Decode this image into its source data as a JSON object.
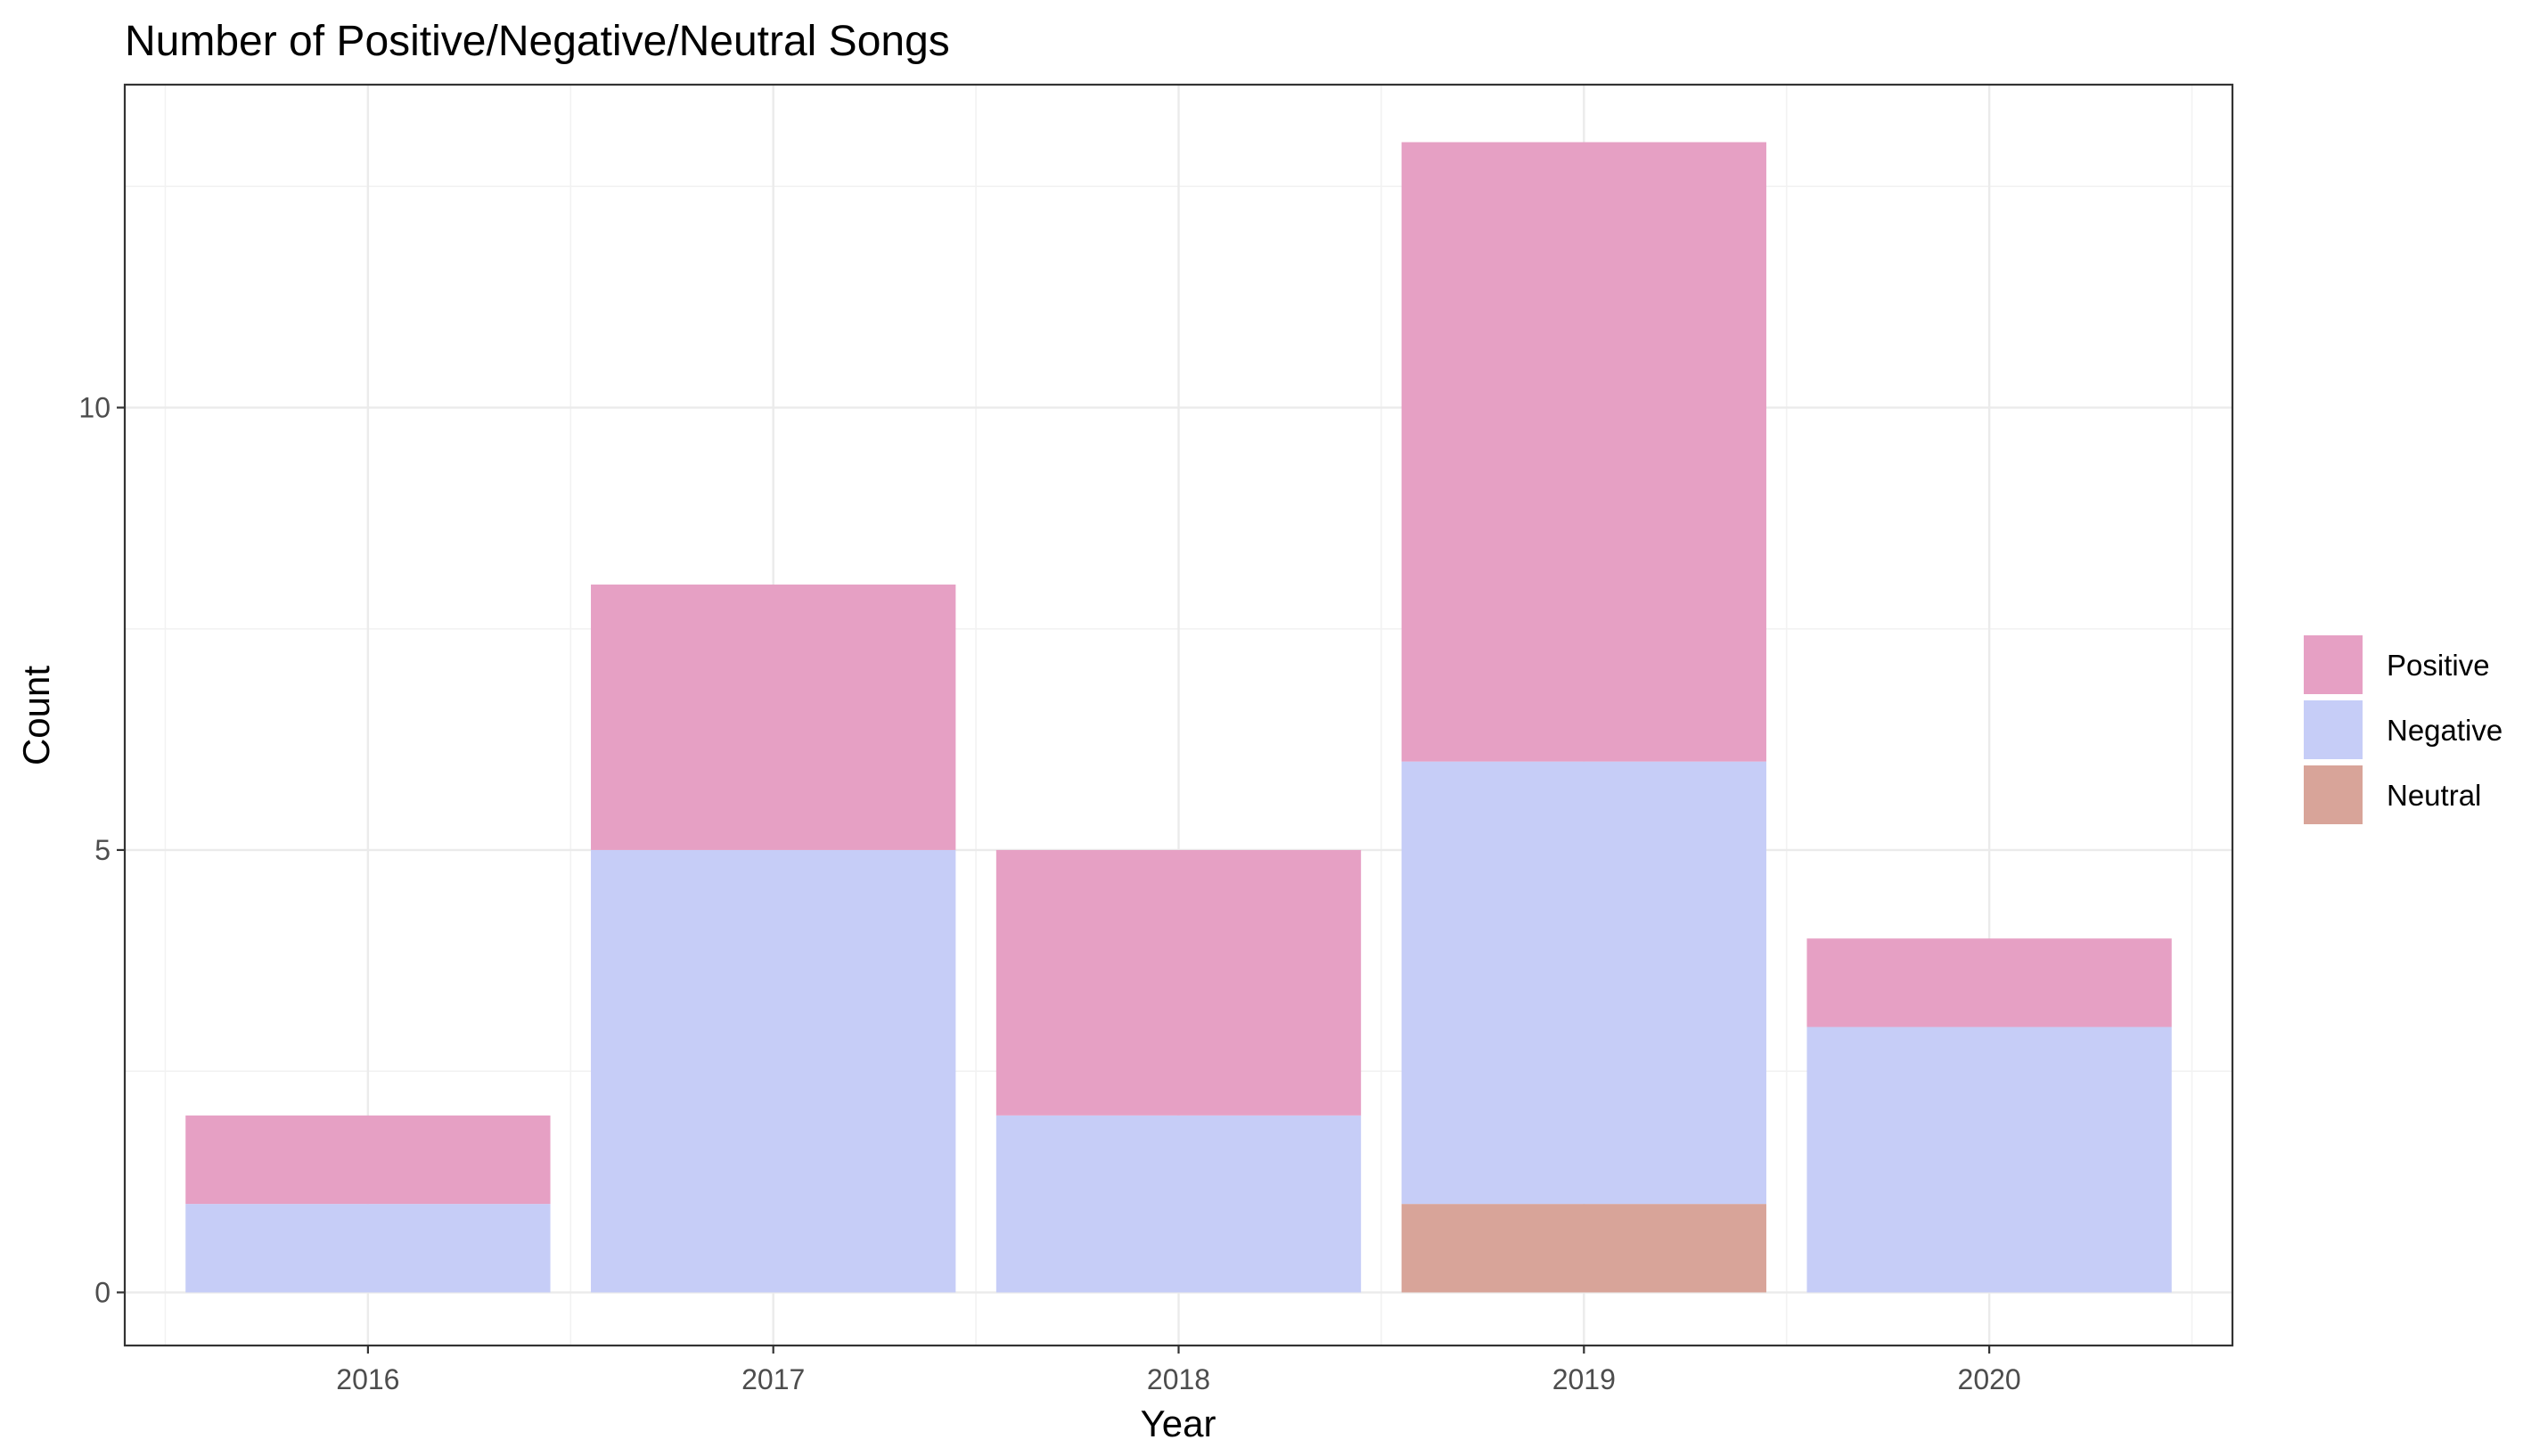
{
  "chart_data": {
    "type": "bar",
    "stacked": true,
    "title": "Number of Positive/Negative/Neutral Songs",
    "xlabel": "Year",
    "ylabel": "Count",
    "categories": [
      "2016",
      "2017",
      "2018",
      "2019",
      "2020"
    ],
    "series": [
      {
        "name": "Neutral",
        "values": [
          0,
          0,
          0,
          1,
          0
        ],
        "color": "#D8A499"
      },
      {
        "name": "Negative",
        "values": [
          1,
          5,
          2,
          5,
          3
        ],
        "color": "#C6CDF7"
      },
      {
        "name": "Positive",
        "values": [
          1,
          3,
          3,
          7,
          1
        ],
        "color": "#E6A0C4"
      }
    ],
    "legend_order": [
      "Positive",
      "Negative",
      "Neutral"
    ],
    "yticks": [
      0,
      5,
      10
    ],
    "ylim": [
      -0.6,
      13.65
    ],
    "grid": true,
    "legend_position": "right"
  }
}
